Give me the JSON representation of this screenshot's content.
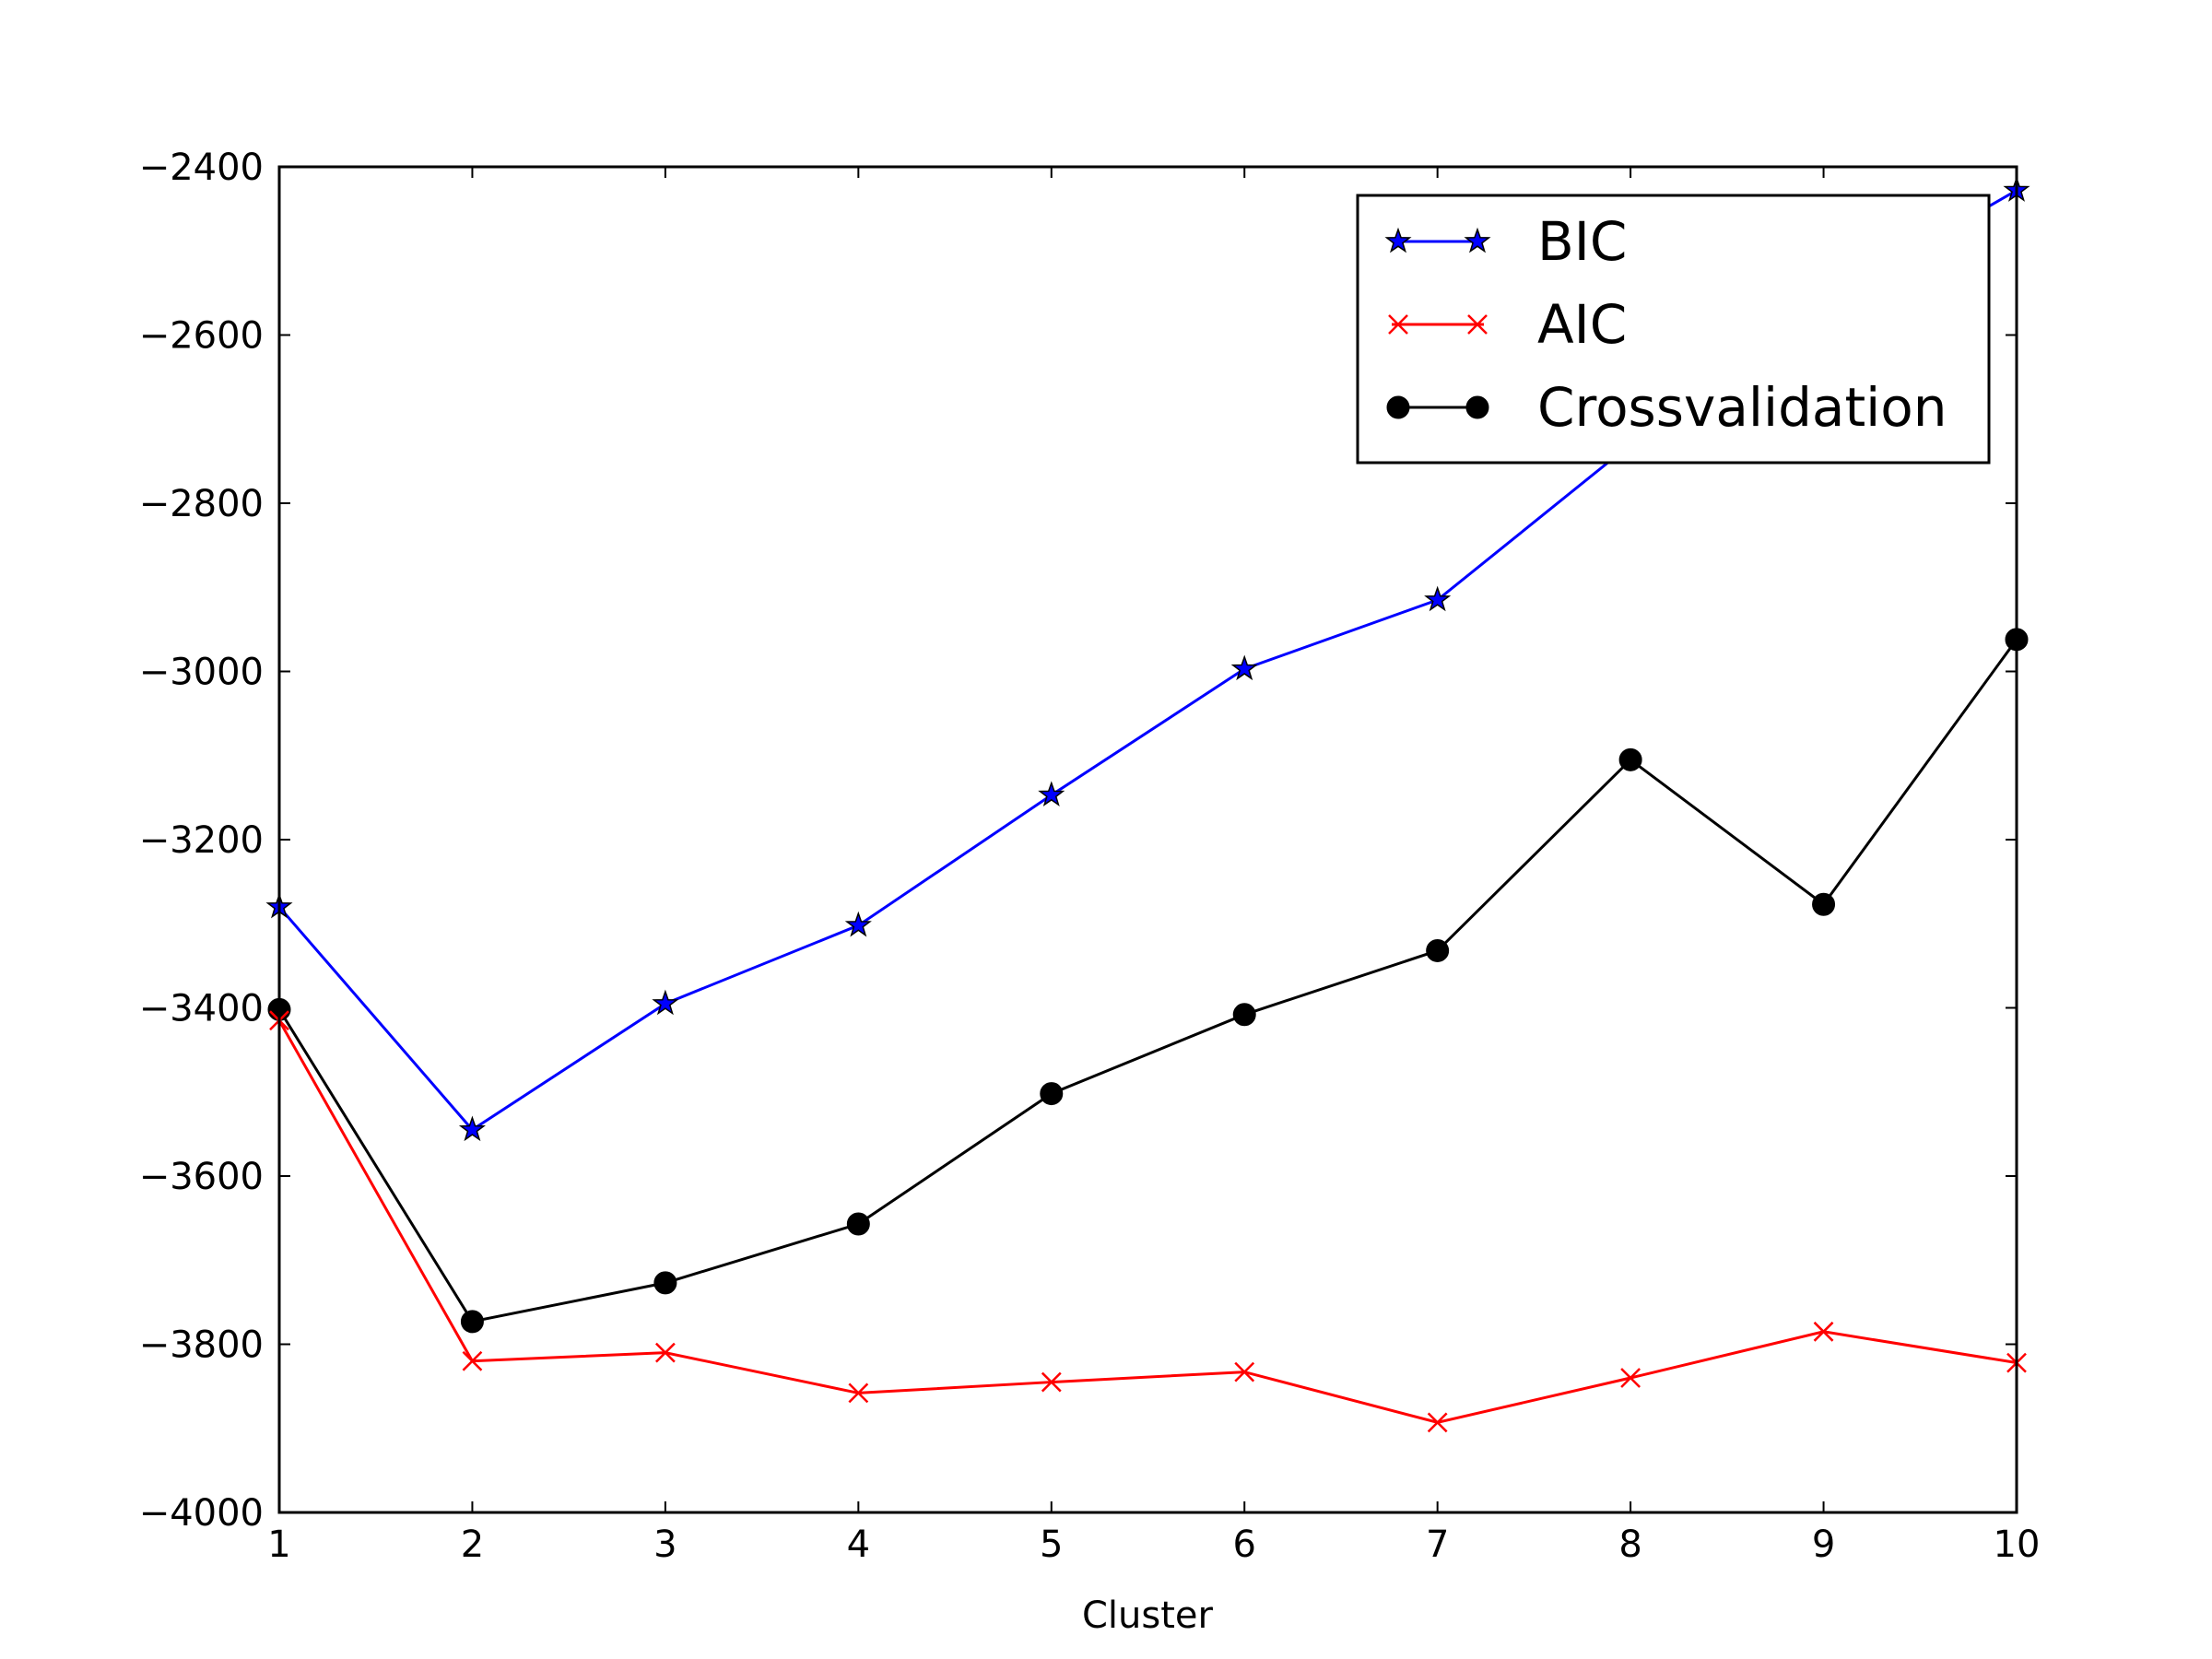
{
  "chart_data": {
    "type": "line",
    "xlabel": "Cluster",
    "ylabel": "",
    "title": "",
    "xlim": [
      1,
      10
    ],
    "ylim": [
      -4000,
      -2400
    ],
    "xticks": [
      1,
      2,
      3,
      4,
      5,
      6,
      7,
      8,
      9,
      10
    ],
    "xtick_labels": [
      "1",
      "2",
      "3",
      "4",
      "5",
      "6",
      "7",
      "8",
      "9",
      "10"
    ],
    "yticks": [
      -4000,
      -3800,
      -3600,
      -3400,
      -3200,
      -3000,
      -2800,
      -2600,
      -2400
    ],
    "ytick_labels": [
      "−4000",
      "−3800",
      "−3600",
      "−3400",
      "−3200",
      "−3000",
      "−2800",
      "−2600",
      "−2400"
    ],
    "grid": false,
    "legend_position": "top-right",
    "x": [
      1,
      2,
      3,
      4,
      5,
      6,
      7,
      8,
      9,
      10
    ],
    "series": [
      {
        "name": "BIC",
        "color": "#0000ff",
        "marker": "star",
        "values": [
          -3280,
          -3545,
          -3395,
          -3302,
          -3147,
          -2997,
          -2915,
          -2730,
          -2560,
          -2428
        ]
      },
      {
        "name": "AIC",
        "color": "#ff0000",
        "marker": "x",
        "values": [
          -3415,
          -3820,
          -3810,
          -3858,
          -3845,
          -3833,
          -3893,
          -3840,
          -3785,
          -3822
        ]
      },
      {
        "name": "Crossvalidation",
        "color": "#000000",
        "marker": "circle",
        "values": [
          -3402,
          -3773,
          -3727,
          -3657,
          -3502,
          -3408,
          -3332,
          -3105,
          -3277,
          -2962
        ]
      }
    ]
  }
}
